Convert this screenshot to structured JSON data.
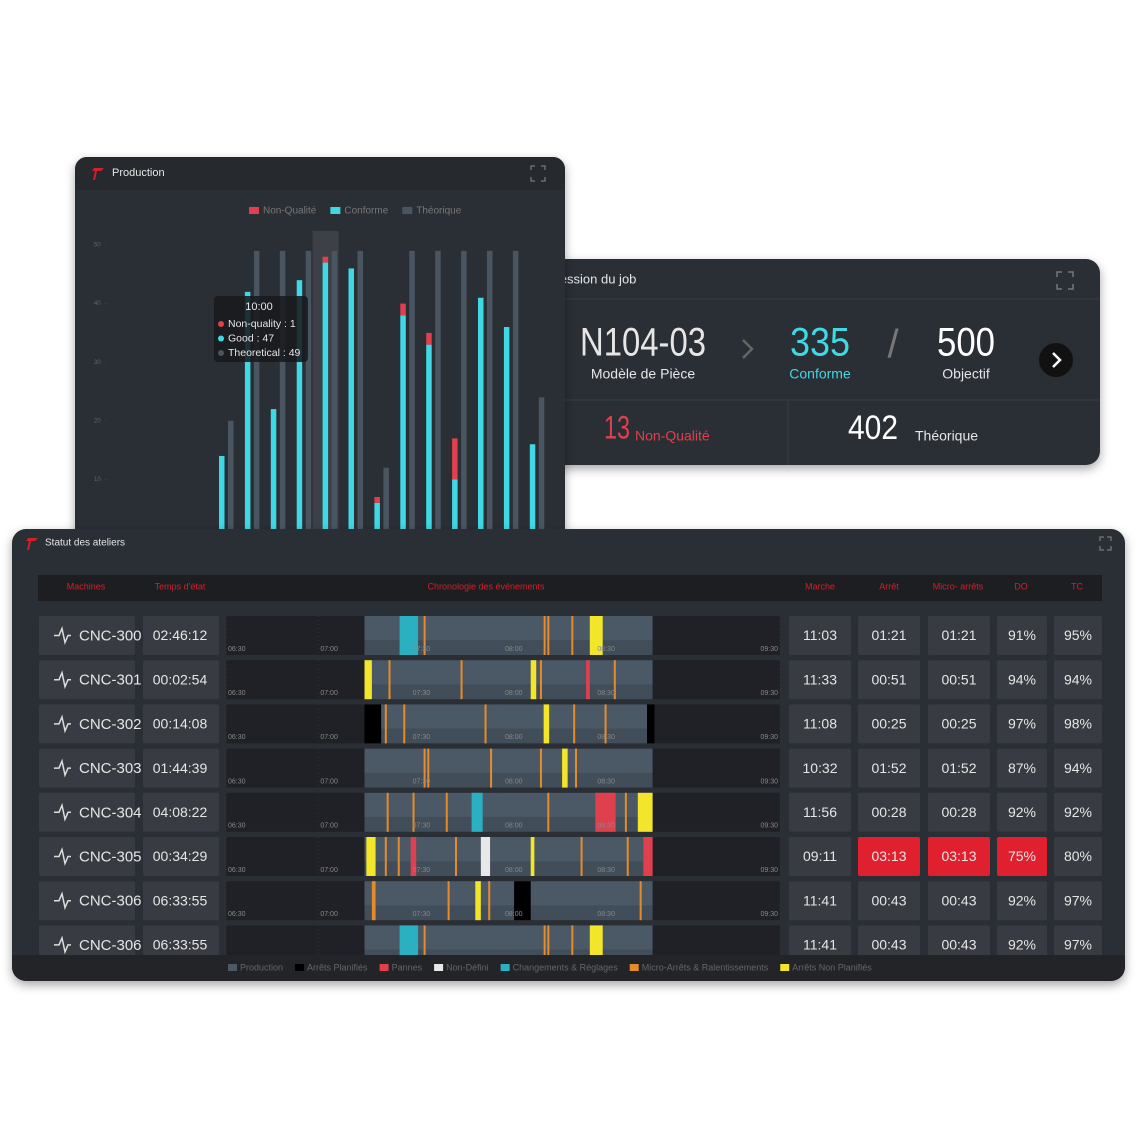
{
  "chart_data": {
    "type": "bar",
    "title": "Production",
    "ylim": [
      0,
      50
    ],
    "yticks": [
      10,
      20,
      30,
      40,
      50
    ],
    "series": [
      {
        "name": "Non-Qualité",
        "color": "#e0404e",
        "stack": "quality",
        "values": [
          0,
          0,
          0,
          0,
          1,
          0,
          1,
          2,
          2,
          7,
          0,
          0,
          0
        ]
      },
      {
        "name": "Conforme",
        "color": "#3fd8e4",
        "stack": "quality",
        "values": [
          14,
          42,
          22,
          44,
          47,
          46,
          6,
          38,
          33,
          10,
          41,
          36,
          16
        ]
      },
      {
        "name": "Théorique",
        "color": "#4a5562",
        "stack": "theoretical",
        "values": [
          20,
          49,
          49,
          49,
          49,
          49,
          12,
          49,
          49,
          49,
          49,
          49,
          24
        ]
      }
    ],
    "tooltip": {
      "title": "10:00",
      "lines": [
        "Non-quality : 1",
        "Good : 47",
        "Theoretical : 49"
      ]
    }
  },
  "job": {
    "title": "Progression du job",
    "part": "N104-03",
    "part_label": "Modèle de Pièce",
    "good": 335,
    "good_label": "Conforme",
    "separator": "/",
    "target": 500,
    "target_label": "Objectif",
    "bad": 13,
    "bad_label": "Non-Qualité",
    "theoretical": 402,
    "theoretical_label": "Théorique"
  },
  "workshop": {
    "title": "Statut des ateliers",
    "columns": [
      "Machines",
      "Temps d'état",
      "Chronologie des événements",
      "Marche",
      "Arrêt",
      "Micro- arrêts",
      "DO",
      "TC"
    ],
    "timeline": {
      "xlim": [
        6.5,
        9.5
      ],
      "xticks": [
        {
          "value": 6.5,
          "label": "06:30"
        },
        {
          "value": 7,
          "label": "07:00"
        },
        {
          "value": 7.5,
          "label": "07:30"
        },
        {
          "value": 8,
          "label": "08:00"
        },
        {
          "value": 8.5,
          "label": "08:30"
        },
        {
          "value": 9.5,
          "label": "09:30"
        }
      ]
    },
    "legend": [
      {
        "name": "Production",
        "color": "#4b5866"
      },
      {
        "name": "Arrêts Planifiés",
        "color": "#000000"
      },
      {
        "name": "Pannes",
        "color": "#e0404e"
      },
      {
        "name": "Non-Défini",
        "color": "#e8e8e8"
      },
      {
        "name": "Changements & Réglages",
        "color": "#2ab0c0"
      },
      {
        "name": "Micro-Arrêts & Ralentissements",
        "color": "#e88a2a"
      },
      {
        "name": "Arrêts Non Planifiés",
        "color": "#f2e52a"
      }
    ],
    "rows": [
      {
        "machine": "CNC-300",
        "state_time": "02:46:12",
        "stats": [
          "11:03",
          "01:21",
          "01:21",
          "91%",
          "95%"
        ],
        "alerts": [
          false,
          false,
          false,
          false,
          false
        ],
        "events": [
          [
            [
              7.25,
              8.81
            ]
          ],
          [],
          [],
          [],
          [
            [
              7.44,
              7.54
            ]
          ],
          [
            [
              7.57,
              7.58
            ],
            [
              8.22,
              8.23
            ],
            [
              8.24,
              8.25
            ],
            [
              8.37,
              8.38
            ]
          ],
          [
            [
              8.47,
              8.54
            ]
          ]
        ]
      },
      {
        "machine": "CNC-301",
        "state_time": "00:02:54",
        "stats": [
          "11:33",
          "00:51",
          "00:51",
          "94%",
          "94%"
        ],
        "alerts": [
          false,
          false,
          false,
          false,
          false
        ],
        "events": [
          [
            [
              7.25,
              8.81
            ]
          ],
          [],
          [
            [
              8.45,
              8.47
            ]
          ],
          [],
          [],
          [
            [
              7.38,
              7.39
            ],
            [
              7.77,
              7.78
            ],
            [
              8.2,
              8.21
            ],
            [
              8.6,
              8.61
            ]
          ],
          [
            [
              7.25,
              7.29
            ],
            [
              8.15,
              8.18
            ]
          ]
        ]
      },
      {
        "machine": "CNC-302",
        "state_time": "00:14:08",
        "stats": [
          "11:08",
          "00:25",
          "00:25",
          "97%",
          "98%"
        ],
        "alerts": [
          false,
          false,
          false,
          false,
          false
        ],
        "events": [
          [
            [
              7.25,
              8.81
            ]
          ],
          [
            [
              7.25,
              7.34
            ],
            [
              8.78,
              8.82
            ]
          ],
          [],
          [],
          [],
          [
            [
              7.36,
              7.37
            ],
            [
              7.46,
              7.47
            ],
            [
              7.9,
              7.91
            ],
            [
              8.38,
              8.39
            ],
            [
              8.55,
              8.56
            ]
          ],
          [
            [
              8.22,
              8.25
            ]
          ]
        ]
      },
      {
        "machine": "CNC-303",
        "state_time": "01:44:39",
        "stats": [
          "10:32",
          "01:52",
          "01:52",
          "87%",
          "94%"
        ],
        "alerts": [
          false,
          false,
          false,
          false,
          false
        ],
        "events": [
          [
            [
              7.25,
              8.81
            ]
          ],
          [],
          [],
          [],
          [],
          [
            [
              7.57,
              7.58
            ],
            [
              7.59,
              7.6
            ],
            [
              7.93,
              7.94
            ],
            [
              8.2,
              8.21
            ],
            [
              8.39,
              8.4
            ]
          ],
          [
            [
              8.32,
              8.35
            ]
          ]
        ]
      },
      {
        "machine": "CNC-304",
        "state_time": "04:08:22",
        "stats": [
          "11:56",
          "00:28",
          "00:28",
          "92%",
          "92%"
        ],
        "alerts": [
          false,
          false,
          false,
          false,
          false
        ],
        "events": [
          [
            [
              7.25,
              8.81
            ]
          ],
          [],
          [
            [
              8.5,
              8.61
            ]
          ],
          [],
          [
            [
              7.83,
              7.89
            ]
          ],
          [
            [
              7.37,
              7.38
            ],
            [
              7.51,
              7.52
            ],
            [
              7.69,
              7.7
            ],
            [
              8.24,
              8.25
            ],
            [
              8.66,
              8.67
            ]
          ],
          [
            [
              8.73,
              8.81
            ]
          ]
        ]
      },
      {
        "machine": "CNC-305",
        "state_time": "00:34:29",
        "stats": [
          "09:11",
          "03:13",
          "03:13",
          "75%",
          "80%"
        ],
        "alerts": [
          false,
          true,
          true,
          true,
          false
        ],
        "events": [
          [
            [
              7.25,
              8.81
            ]
          ],
          [],
          [
            [
              7.5,
              7.53
            ],
            [
              8.76,
              8.81
            ]
          ],
          [
            [
              7.88,
              7.93
            ]
          ],
          [],
          [
            [
              7.36,
              7.37
            ],
            [
              7.43,
              7.44
            ],
            [
              7.74,
              7.75
            ],
            [
              8.42,
              8.43
            ],
            [
              8.67,
              8.68
            ]
          ],
          [
            [
              7.26,
              7.31
            ],
            [
              8.15,
              8.17
            ]
          ]
        ]
      },
      {
        "machine": "CNC-306",
        "state_time": "06:33:55",
        "stats": [
          "11:41",
          "00:43",
          "00:43",
          "92%",
          "97%"
        ],
        "alerts": [
          false,
          false,
          false,
          false,
          false
        ],
        "events": [
          [
            [
              7.25,
              8.81
            ]
          ],
          [
            [
              8.06,
              8.15
            ]
          ],
          [],
          [],
          [],
          [
            [
              7.29,
              7.31
            ],
            [
              7.7,
              7.71
            ],
            [
              7.92,
              7.93
            ],
            [
              8.74,
              8.75
            ]
          ],
          [
            [
              7.85,
              7.88
            ]
          ]
        ]
      },
      {
        "machine": "CNC-306",
        "state_time": "06:33:55",
        "stats": [
          "11:41",
          "00:43",
          "00:43",
          "92%",
          "97%"
        ],
        "alerts": [
          false,
          false,
          false,
          false,
          false
        ],
        "events": [
          [
            [
              7.25,
              8.81
            ]
          ],
          [],
          [],
          [],
          [
            [
              7.44,
              7.54
            ]
          ],
          [
            [
              7.57,
              7.58
            ],
            [
              8.22,
              8.23
            ],
            [
              8.24,
              8.25
            ],
            [
              8.37,
              8.38
            ]
          ],
          [
            [
              8.47,
              8.54
            ]
          ]
        ]
      }
    ]
  }
}
